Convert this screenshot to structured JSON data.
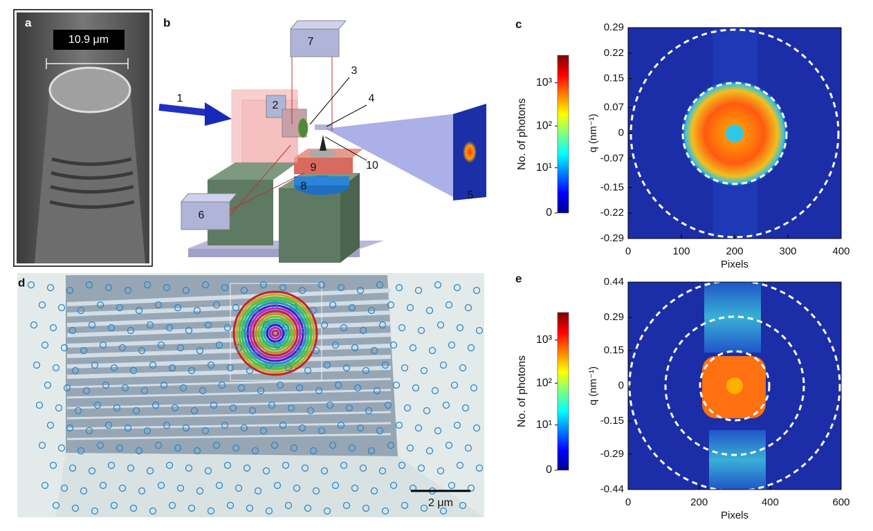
{
  "panels": {
    "a": {
      "label": "a",
      "scale_label": "10.9 μm"
    },
    "b": {
      "label": "b",
      "callouts": [
        "1",
        "2",
        "3",
        "4",
        "5",
        "6",
        "7",
        "8",
        "9",
        "10"
      ]
    },
    "c": {
      "label": "c",
      "colorbar": {
        "label": "No. of photons",
        "log": true,
        "clim": [
          0,
          4300
        ],
        "ticks": [
          0,
          {
            "value": 10,
            "label": "10¹"
          },
          {
            "value": 100,
            "label": "10²"
          },
          {
            "value": 1000,
            "label": "10³"
          }
        ]
      },
      "x_label": "Pixels",
      "y_label": "q (nm⁻¹)",
      "xlim": [
        0,
        400
      ],
      "xticks": [
        0,
        100,
        200,
        300,
        400
      ],
      "ylim": [
        -0.29,
        0.29
      ],
      "yticks": [
        0.29,
        0.22,
        0.15,
        0.07,
        0,
        -0.07,
        -0.15,
        -0.22,
        -0.29
      ]
    },
    "d": {
      "label": "d",
      "scale_label": "2 μm"
    },
    "e": {
      "label": "e",
      "colorbar": {
        "label": "No. of photons",
        "log": true,
        "clim": [
          0,
          4300
        ],
        "ticks": [
          0,
          {
            "value": 10,
            "label": "10¹"
          },
          {
            "value": 100,
            "label": "10²"
          },
          {
            "value": 1000,
            "label": "10³"
          }
        ]
      },
      "x_label": "Pixels",
      "y_label": "q (nm⁻¹)",
      "xlim": [
        0,
        600
      ],
      "xticks": [
        0,
        200,
        400,
        600
      ],
      "ylim": [
        -0.44,
        0.44
      ],
      "yticks": [
        0.44,
        0.29,
        0.15,
        0,
        -0.15,
        -0.29,
        -0.44
      ]
    }
  }
}
